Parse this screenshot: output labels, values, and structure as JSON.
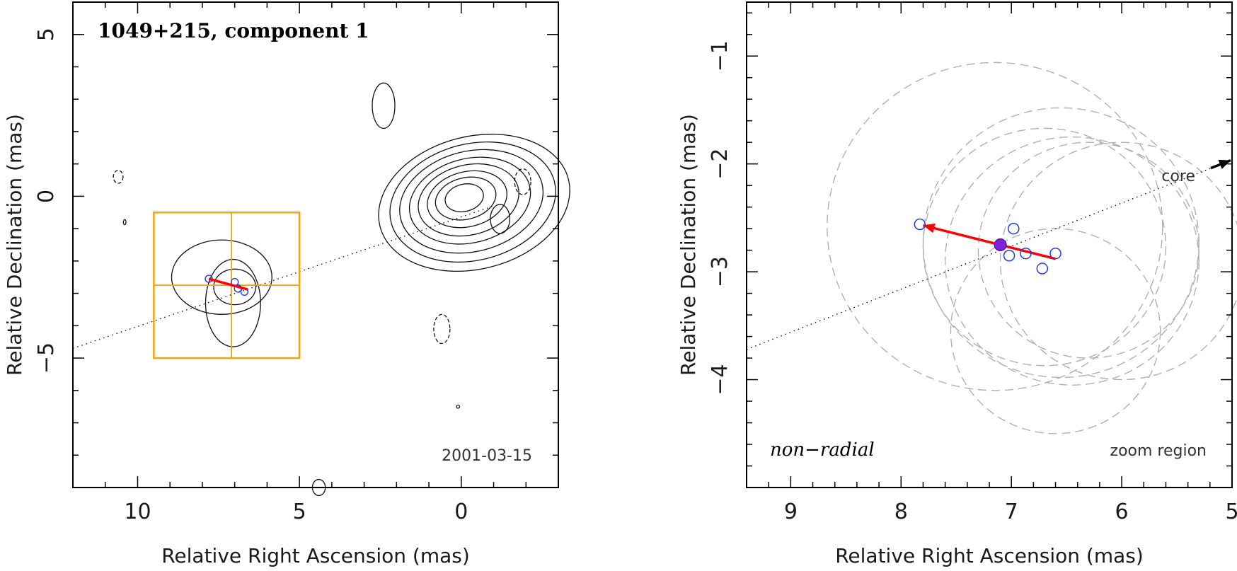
{
  "chart_data": [
    {
      "type": "contour",
      "panel": "left",
      "title": "1049+215, component 1",
      "date": "2001-03-15",
      "xlabel": "Relative Right Ascension (mas)",
      "ylabel": "Relative Declination (mas)",
      "xlim": [
        12,
        -3
      ],
      "ylim": [
        -9,
        6
      ],
      "x_ticks": [
        10,
        5,
        0
      ],
      "y_ticks": [
        5,
        0,
        -5
      ],
      "x_tick_labels": [
        "10",
        "5",
        "0"
      ],
      "y_tick_labels": [
        "5",
        "0",
        "−5"
      ],
      "core_contours": {
        "center": [
          -0.4,
          -0.2
        ],
        "levels": [
          {
            "rx": 3.0,
            "ry": 2.05
          },
          {
            "rx": 2.6,
            "ry": 1.8
          },
          {
            "rx": 2.25,
            "ry": 1.55
          },
          {
            "rx": 1.9,
            "ry": 1.3
          },
          {
            "rx": 1.58,
            "ry": 1.08
          },
          {
            "rx": 1.25,
            "ry": 0.85
          },
          {
            "rx": 0.95,
            "ry": 0.64
          },
          {
            "rx": 0.6,
            "ry": 0.42
          }
        ]
      },
      "component_contours": [
        {
          "cx": 7.4,
          "cy": -2.5,
          "rx": 1.55,
          "ry": 1.15
        },
        {
          "cx": 7.05,
          "cy": -3.3,
          "rx": 0.85,
          "ry": 1.35
        },
        {
          "cx": 7.0,
          "cy": -2.8,
          "rx": 0.65,
          "ry": 0.55
        }
      ],
      "isolated_contours": [
        {
          "cx": 2.4,
          "cy": 2.8,
          "rx": 0.35,
          "ry": 0.7,
          "dashed": false
        },
        {
          "cx": 10.6,
          "cy": 0.6,
          "rx": 0.15,
          "ry": 0.2,
          "dashed": true
        },
        {
          "cx": -1.9,
          "cy": 0.45,
          "rx": 0.25,
          "ry": 0.4,
          "dashed": true
        },
        {
          "cx": -1.2,
          "cy": -0.7,
          "rx": 0.3,
          "ry": 0.45,
          "dashed": false
        },
        {
          "cx": 0.6,
          "cy": -4.1,
          "rx": 0.25,
          "ry": 0.45,
          "dashed": true
        },
        {
          "cx": 4.4,
          "cy": -9.0,
          "rx": 0.2,
          "ry": 0.25,
          "dashed": false
        },
        {
          "cx": 0.1,
          "cy": -6.5,
          "rx": 0.05,
          "ry": 0.05,
          "dashed": false
        },
        {
          "cx": 10.4,
          "cy": -0.8,
          "rx": 0.04,
          "ry": 0.08,
          "dashed": false
        }
      ],
      "jet_axis": {
        "x": [
          12,
          -1
        ],
        "y": [
          -4.7,
          -0.3
        ]
      },
      "zoom_box": {
        "x": [
          9.5,
          5.0
        ],
        "y": [
          -0.5,
          -5.0
        ],
        "cross_x": 7.1,
        "cross_y": -2.75
      },
      "points": {
        "x": [
          7.8,
          7.0,
          6.9,
          6.7
        ],
        "y": [
          -2.55,
          -2.65,
          -2.85,
          -2.95
        ]
      },
      "vector": {
        "from": [
          6.6,
          -2.88
        ],
        "to": [
          7.8,
          -2.55
        ]
      }
    },
    {
      "type": "scatter",
      "panel": "right",
      "xlabel": "Relative Right Ascension (mas)",
      "ylabel": "Relative Declination (mas)",
      "xlim": [
        9.4,
        5.0
      ],
      "ylim": [
        -5.0,
        -0.5
      ],
      "x_ticks": [
        9,
        8,
        7,
        6,
        5
      ],
      "y_ticks": [
        -1,
        -2,
        -3,
        -4
      ],
      "x_tick_labels": [
        "9",
        "8",
        "7",
        "6",
        "5"
      ],
      "y_tick_labels": [
        "−1",
        "−2",
        "−3",
        "−4"
      ],
      "annotation_left": "non−radial",
      "annotation_right": "zoom region",
      "core_label": "core",
      "epochs": {
        "x": [
          7.83,
          6.98,
          7.02,
          6.87,
          6.6,
          6.72
        ],
        "y": [
          -2.56,
          -2.6,
          -2.85,
          -2.83,
          -2.83,
          -2.97
        ]
      },
      "mean_position": {
        "x": 7.1,
        "y": -2.75
      },
      "vector": {
        "from": [
          6.6,
          -2.88
        ],
        "to": [
          7.8,
          -2.57
        ]
      },
      "jet_axis": {
        "x": [
          9.4,
          5.0
        ],
        "y": [
          -3.72,
          -1.96
        ]
      },
      "uncertainty_circles": [
        {
          "cx": 7.15,
          "cy": -2.58,
          "r": 1.52
        },
        {
          "cx": 6.7,
          "cy": -2.77,
          "r": 1.1
        },
        {
          "cx": 6.55,
          "cy": -2.73,
          "r": 1.25
        },
        {
          "cx": 6.3,
          "cy": -2.8,
          "r": 1.0
        },
        {
          "cx": 6.45,
          "cy": -2.9,
          "r": 1.15
        },
        {
          "cx": 6.0,
          "cy": -2.9,
          "r": 1.1
        },
        {
          "cx": 6.6,
          "cy": -3.55,
          "r": 0.95
        }
      ],
      "colors": {
        "points": "#1f3fdd",
        "vector": "#ff0000",
        "mean": "#7a22dd",
        "circles": "#b0b0b0"
      }
    }
  ]
}
